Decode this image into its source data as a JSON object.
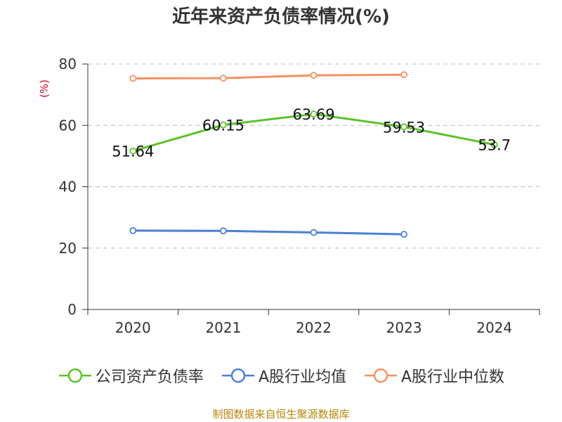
{
  "chart_data": {
    "type": "line",
    "title": "近年来资产负债率情况(%)",
    "ylabel": "(%)",
    "ylim": [
      0,
      80
    ],
    "yticks": [
      0,
      20,
      40,
      60,
      80
    ],
    "categories": [
      "2020",
      "2021",
      "2022",
      "2023",
      "2024"
    ],
    "grid": true,
    "legend_position": "bottom",
    "series": [
      {
        "name": "公司资产负债率",
        "color": "#5bc22a",
        "values": [
          51.64,
          60.15,
          63.69,
          59.53,
          53.7
        ],
        "data_labels": [
          "51.64",
          "60.15",
          "63.69",
          "59.53",
          "53.7"
        ]
      },
      {
        "name": "A股行业均值",
        "color": "#4a7fd8",
        "values": [
          25.7,
          25.6,
          25.1,
          24.5,
          null
        ]
      },
      {
        "name": "A股行业中位数",
        "color": "#f39262",
        "values": [
          75.3,
          75.4,
          76.3,
          76.5,
          null
        ]
      }
    ]
  },
  "source": "制图数据来自恒生聚源数据库"
}
